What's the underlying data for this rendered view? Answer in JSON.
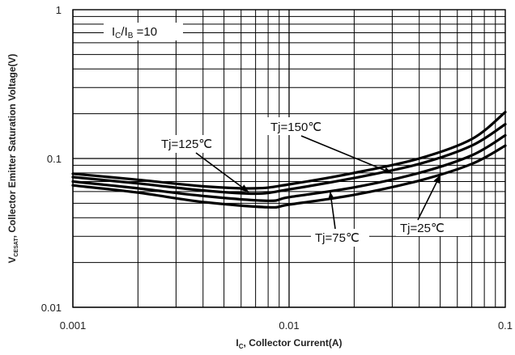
{
  "chart_data": {
    "type": "line",
    "title": "",
    "x_scale": "log",
    "y_scale": "log",
    "xlim": [
      0.001,
      0.1
    ],
    "ylim": [
      0.01,
      1
    ],
    "grid": true,
    "x_ticks": [
      {
        "value": 0.001,
        "label": "0.001"
      },
      {
        "value": 0.01,
        "label": "0.01"
      },
      {
        "value": 0.1,
        "label": "0.1"
      }
    ],
    "y_ticks": [
      {
        "value": 1,
        "label": "1"
      },
      {
        "value": 0.1,
        "label": "0.1"
      },
      {
        "value": 0.01,
        "label": "0.01"
      }
    ],
    "xlabel": {
      "base": "I",
      "sub": "C",
      "rest": ", Collector Current(A)"
    },
    "ylabel": {
      "base": "V",
      "sub": "CESAT",
      "rest": ", Collector Emitter Saturation Voltage(V)"
    },
    "condition": {
      "p1": "I",
      "s1": "C",
      "p2": "/I",
      "s2": "B",
      "p3": " =10"
    },
    "series": [
      {
        "name": "Tj=150℃",
        "x": [
          0.001,
          0.002,
          0.004,
          0.007,
          0.01,
          0.02,
          0.04,
          0.07,
          0.1
        ],
        "y": [
          0.079,
          0.072,
          0.065,
          0.063,
          0.067,
          0.08,
          0.1,
          0.135,
          0.205
        ]
      },
      {
        "name": "Tj=125℃",
        "x": [
          0.001,
          0.002,
          0.004,
          0.007,
          0.01,
          0.02,
          0.04,
          0.07,
          0.1
        ],
        "y": [
          0.075,
          0.068,
          0.061,
          0.058,
          0.062,
          0.074,
          0.092,
          0.122,
          0.17
        ]
      },
      {
        "name": "Tj=75℃",
        "x": [
          0.001,
          0.002,
          0.004,
          0.008,
          0.01,
          0.02,
          0.04,
          0.07,
          0.1
        ],
        "y": [
          0.07,
          0.063,
          0.056,
          0.052,
          0.055,
          0.064,
          0.08,
          0.105,
          0.143
        ]
      },
      {
        "name": "Tj=25℃",
        "x": [
          0.001,
          0.002,
          0.004,
          0.008,
          0.01,
          0.02,
          0.04,
          0.07,
          0.1
        ],
        "y": [
          0.066,
          0.059,
          0.051,
          0.047,
          0.049,
          0.057,
          0.071,
          0.092,
          0.122
        ]
      }
    ],
    "labels": [
      {
        "text": "Tj=150℃",
        "series": "Tj=150℃",
        "arrow_to": [
          0.03,
          0.0795
        ]
      },
      {
        "text": "Tj=125℃",
        "series": "Tj=125℃",
        "arrow_to": [
          0.0065,
          0.0595
        ]
      },
      {
        "text": "Tj=75℃",
        "series": "Tj=75℃",
        "arrow_to": [
          0.0155,
          0.06
        ]
      },
      {
        "text": "Tj=25℃",
        "series": "Tj=25℃",
        "arrow_to": [
          0.05,
          0.0775
        ]
      }
    ],
    "line_color": "#000000",
    "grid_color": "#000000"
  }
}
